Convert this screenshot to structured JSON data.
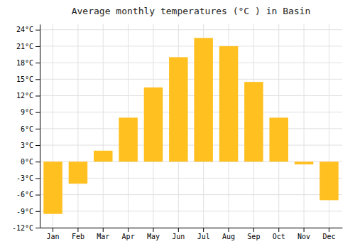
{
  "chart_data": {
    "type": "bar",
    "title": "Average monthly temperatures (°C ) in Basin",
    "categories": [
      "Jan",
      "Feb",
      "Mar",
      "Apr",
      "May",
      "Jun",
      "Jul",
      "Aug",
      "Sep",
      "Oct",
      "Nov",
      "Dec"
    ],
    "values": [
      -9.5,
      -4.0,
      2.0,
      8.0,
      13.5,
      19.0,
      22.5,
      21.0,
      14.5,
      8.0,
      -0.5,
      -7.0
    ],
    "color": "#FFC020",
    "ylim": [
      -12,
      25
    ],
    "yticks": [
      {
        "value": -12,
        "label": "-12°C"
      },
      {
        "value": -9,
        "label": "-9°C"
      },
      {
        "value": -6,
        "label": "-6°C"
      },
      {
        "value": -3,
        "label": "-3°C"
      },
      {
        "value": 0,
        "label": "0°C"
      },
      {
        "value": 3,
        "label": "3°C"
      },
      {
        "value": 6,
        "label": "6°C"
      },
      {
        "value": 9,
        "label": "9°C"
      },
      {
        "value": 12,
        "label": "12°C"
      },
      {
        "value": 15,
        "label": "15°C"
      },
      {
        "value": 18,
        "label": "18°C"
      },
      {
        "value": 21,
        "label": "21°C"
      },
      {
        "value": 24,
        "label": "24°C"
      }
    ],
    "grid": true
  }
}
